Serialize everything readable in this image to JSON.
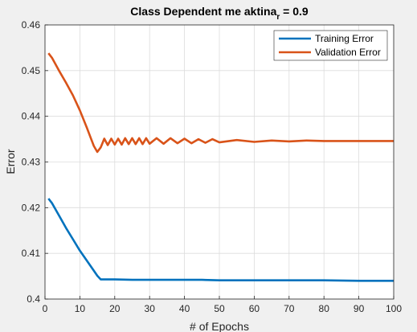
{
  "chart_data": {
    "type": "line",
    "title": "Class Dependent me aktina",
    "title_subscript": "r",
    "title_suffix": " = 0.9",
    "xlabel": "# of Epochs",
    "ylabel": "Error",
    "xlim": [
      0,
      100
    ],
    "ylim": [
      0.4,
      0.46
    ],
    "xticks": [
      0,
      10,
      20,
      30,
      40,
      50,
      60,
      70,
      80,
      90,
      100
    ],
    "yticks": [
      0.4,
      0.41,
      0.42,
      0.43,
      0.44,
      0.45,
      0.46
    ],
    "ytick_labels": [
      "0.4",
      "0.41",
      "0.42",
      "0.43",
      "0.44",
      "0.45",
      "0.46"
    ],
    "grid": true,
    "legend_position": "top-right",
    "series": [
      {
        "name": "Training Error",
        "color": "#0072BD",
        "x": [
          1,
          2,
          4,
          6,
          8,
          10,
          12,
          14,
          15,
          16,
          18,
          20,
          25,
          30,
          35,
          40,
          45,
          50,
          60,
          70,
          80,
          90,
          100
        ],
        "y": [
          0.422,
          0.421,
          0.4183,
          0.4156,
          0.4131,
          0.4106,
          0.4084,
          0.4062,
          0.4051,
          0.4043,
          0.4043,
          0.4043,
          0.4042,
          0.4042,
          0.4042,
          0.4042,
          0.4042,
          0.4041,
          0.4041,
          0.4041,
          0.4041,
          0.404,
          0.404
        ]
      },
      {
        "name": "Validation Error",
        "color": "#D95319",
        "x": [
          1,
          2,
          4,
          6,
          8,
          10,
          12,
          13,
          14,
          15,
          16,
          17,
          18,
          19,
          20,
          21,
          22,
          23,
          24,
          25,
          26,
          27,
          28,
          29,
          30,
          32,
          34,
          36,
          38,
          40,
          42,
          44,
          46,
          48,
          50,
          55,
          60,
          65,
          70,
          75,
          80,
          90,
          100
        ],
        "y": [
          0.4538,
          0.4528,
          0.45,
          0.4474,
          0.4446,
          0.4413,
          0.4375,
          0.4355,
          0.4335,
          0.4322,
          0.4332,
          0.4351,
          0.4337,
          0.4351,
          0.4338,
          0.4351,
          0.4338,
          0.4352,
          0.4339,
          0.4352,
          0.4339,
          0.4352,
          0.4339,
          0.4352,
          0.434,
          0.4352,
          0.434,
          0.4352,
          0.4341,
          0.4351,
          0.4341,
          0.435,
          0.4342,
          0.435,
          0.4343,
          0.4348,
          0.4344,
          0.4347,
          0.4345,
          0.4347,
          0.4346,
          0.4346,
          0.4346
        ]
      }
    ]
  }
}
